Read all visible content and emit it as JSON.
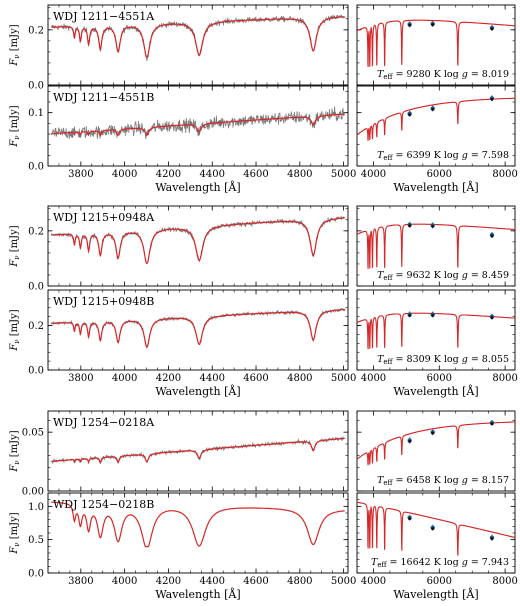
{
  "figure": {
    "xlabel": "Wavelength [Å]",
    "ylabel_main": "F",
    "ylabel_sub": "ν",
    "ylabel_unit": "[mJy]",
    "left_xticks": [
      "3800",
      "4000",
      "4200",
      "4400",
      "4600",
      "4800",
      "5000"
    ],
    "right_xticks": [
      "4000",
      "6000",
      "8000"
    ],
    "colors": {
      "observed": "#7a7a7a",
      "model": "#d62728",
      "photometry": "#1f5f9e"
    }
  },
  "chart_data": [
    {
      "type": "line",
      "star": "WDJ 1211−4551A",
      "left": {
        "xlim": [
          3650,
          5020
        ],
        "ylim": [
          0,
          0.29
        ],
        "yticks": [
          "0.0",
          "0.2"
        ],
        "continuum": 0.21,
        "slope": 0.04,
        "depth": 0.55,
        "width": 1.0,
        "noise": 0.01,
        "xlabel_shown": false
      },
      "right": {
        "xlim": [
          3500,
          8300
        ],
        "ylim": [
          0,
          0.29
        ],
        "yticks": [],
        "label_teff": "9280 K",
        "label_logg": "8.019",
        "teff": 9280,
        "peak": 0.262,
        "depth": 0.7,
        "phot": [
          [
            5100,
            0.22
          ],
          [
            5800,
            0.222
          ],
          [
            7600,
            0.207
          ]
        ],
        "xlabel_shown": false
      }
    },
    {
      "type": "line",
      "star": "WDJ 1211−4551B",
      "left": {
        "xlim": [
          3650,
          5020
        ],
        "ylim": [
          0,
          0.15
        ],
        "yticks": [
          "0.0",
          "0.1"
        ],
        "continuum": 0.06,
        "slope": 0.038,
        "depth": 0.2,
        "width": 0.6,
        "noise": 0.012,
        "xlabel_shown": true
      },
      "right": {
        "xlim": [
          3500,
          8300
        ],
        "ylim": [
          0,
          0.15
        ],
        "yticks": [],
        "label_teff": "6399 K",
        "label_logg": "7.598",
        "teff": 6399,
        "peak": 0.13,
        "depth": 0.35,
        "phot": [
          [
            5100,
            0.098
          ],
          [
            5800,
            0.108
          ],
          [
            7600,
            0.127
          ]
        ],
        "xlabel_shown": true
      }
    },
    {
      "type": "line",
      "star": "WDJ 1215+0948A",
      "left": {
        "xlim": [
          3650,
          5020
        ],
        "ylim": [
          0,
          0.29
        ],
        "yticks": [
          "0.0",
          "0.2"
        ],
        "continuum": 0.185,
        "slope": 0.065,
        "depth": 0.6,
        "width": 1.0,
        "noise": 0.008,
        "xlabel_shown": false
      },
      "right": {
        "xlim": [
          3500,
          8300
        ],
        "ylim": [
          0,
          0.29
        ],
        "yticks": [],
        "label_teff": "9632 K",
        "label_logg": "8.459",
        "teff": 9632,
        "peak": 0.25,
        "depth": 0.7,
        "phot": [
          [
            5100,
            0.222
          ],
          [
            5800,
            0.22
          ],
          [
            7600,
            0.185
          ]
        ],
        "xlabel_shown": false
      }
    },
    {
      "type": "line",
      "star": "WDJ 1215+0948B",
      "left": {
        "xlim": [
          3650,
          5020
        ],
        "ylim": [
          0,
          0.36
        ],
        "yticks": [
          "0.0",
          "0.2"
        ],
        "continuum": 0.21,
        "slope": 0.065,
        "depth": 0.55,
        "width": 0.9,
        "noise": 0.008,
        "xlabel_shown": true
      },
      "right": {
        "xlim": [
          3500,
          8300
        ],
        "ylim": [
          0,
          0.36
        ],
        "yticks": [],
        "label_teff": "8309 K",
        "label_logg": "8.055",
        "teff": 8309,
        "peak": 0.285,
        "depth": 0.6,
        "phot": [
          [
            5100,
            0.25
          ],
          [
            5800,
            0.25
          ],
          [
            7600,
            0.24
          ]
        ],
        "xlabel_shown": true
      }
    },
    {
      "type": "line",
      "star": "WDJ 1254−0218A",
      "left": {
        "xlim": [
          3650,
          5020
        ],
        "ylim": [
          0,
          0.068
        ],
        "yticks": [
          "0.00",
          "0.05"
        ],
        "continuum": 0.025,
        "slope": 0.02,
        "depth": 0.22,
        "width": 0.5,
        "noise": 0.0015,
        "xlabel_shown": false
      },
      "right": {
        "xlim": [
          3500,
          8300
        ],
        "ylim": [
          0,
          0.068
        ],
        "yticks": [],
        "label_teff": "6458 K",
        "label_logg": "8.157",
        "teff": 6458,
        "peak": 0.06,
        "depth": 0.35,
        "phot": [
          [
            5100,
            0.043
          ],
          [
            5800,
            0.05
          ],
          [
            7600,
            0.058
          ]
        ],
        "xlabel_shown": false
      }
    },
    {
      "type": "line",
      "star": "WDJ 1254−0218B",
      "left": {
        "xlim": [
          3650,
          5020
        ],
        "ylim": [
          0,
          1.2
        ],
        "yticks": [
          "0.0",
          "0.5",
          "1.0"
        ],
        "continuum": 1.08,
        "slope": -0.12,
        "depth": 0.62,
        "width": 1.8,
        "noise": 0.0,
        "xlabel_shown": true
      },
      "right": {
        "xlim": [
          3500,
          8300
        ],
        "ylim": [
          0,
          1.2
        ],
        "yticks": [],
        "label_teff": "16642 K",
        "label_logg": "7.943",
        "teff": 16642,
        "peak": 1.1,
        "depth": 0.65,
        "phot": [
          [
            5100,
            0.83
          ],
          [
            5800,
            0.68
          ],
          [
            7600,
            0.53
          ]
        ],
        "xlabel_shown": true
      }
    }
  ]
}
